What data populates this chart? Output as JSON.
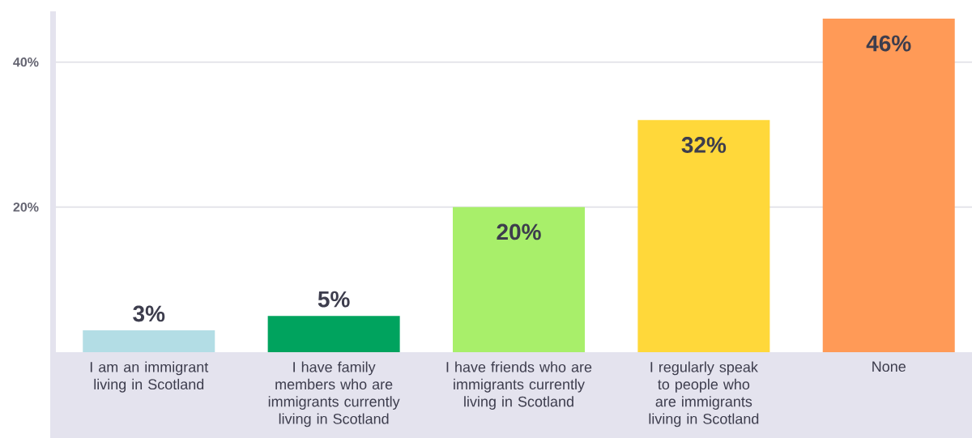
{
  "chart_data": {
    "type": "bar",
    "categories": [
      "I am an immigrant living in Scotland",
      "I have family members who are immigrants currently living in Scotland",
      "I have friends who are immigrants currently living in Scotland",
      "I regularly speak to people who are immigrants living in Scotland",
      "None"
    ],
    "values": [
      3,
      5,
      20,
      32,
      46
    ],
    "colors": [
      "#b3dde5",
      "#00a35e",
      "#a8ef6a",
      "#ffd83a",
      "#ff9a57"
    ],
    "value_labels": [
      "3%",
      "5%",
      "20%",
      "32%",
      "46%"
    ],
    "ylim": [
      0,
      47
    ],
    "yticks": [
      {
        "value": 20,
        "label": "20%"
      },
      {
        "value": 40,
        "label": "40%"
      }
    ],
    "grid": "y"
  }
}
